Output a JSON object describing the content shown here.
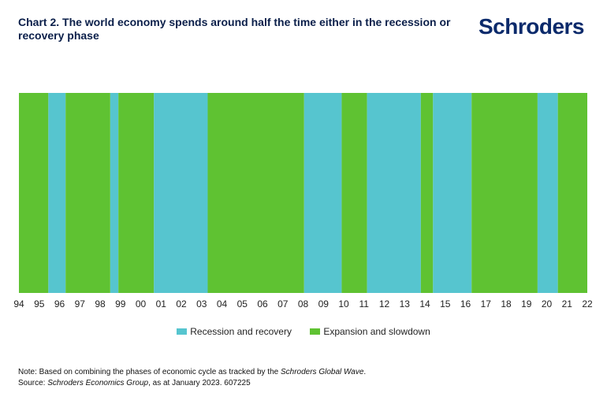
{
  "header": {
    "title": "Chart 2. The world economy spends around half the time either in the recession or recovery phase",
    "logo_text": "Schroders"
  },
  "colors": {
    "recession_recovery": "#56c5cf",
    "expansion_slowdown": "#5fc232",
    "axis_text": "#222222",
    "title": "#0b1f4a"
  },
  "chart_data": {
    "type": "area",
    "title": "Chart 2. The world economy spends around half the time either in the recession or recovery phase",
    "xlabel": "",
    "ylabel": "",
    "x_tick_labels": [
      "94",
      "95",
      "96",
      "97",
      "98",
      "99",
      "00",
      "01",
      "02",
      "03",
      "04",
      "05",
      "06",
      "07",
      "08",
      "09",
      "10",
      "11",
      "12",
      "13",
      "14",
      "15",
      "16",
      "17",
      "18",
      "19",
      "20",
      "21",
      "22"
    ],
    "x_range": [
      1994.0,
      2022.0
    ],
    "series": [
      {
        "name": "Recession and recovery",
        "color": "#56c5cf"
      },
      {
        "name": "Expansion and slowdown",
        "color": "#5fc232"
      }
    ],
    "phases": [
      {
        "start": 1994.0,
        "end": 1995.45,
        "series": "Expansion and slowdown"
      },
      {
        "start": 1995.45,
        "end": 1996.3,
        "series": "Recession and recovery"
      },
      {
        "start": 1996.3,
        "end": 1998.5,
        "series": "Expansion and slowdown"
      },
      {
        "start": 1998.5,
        "end": 1998.9,
        "series": "Recession and recovery"
      },
      {
        "start": 1998.9,
        "end": 2000.65,
        "series": "Expansion and slowdown"
      },
      {
        "start": 2000.65,
        "end": 2003.3,
        "series": "Recession and recovery"
      },
      {
        "start": 2003.3,
        "end": 2008.05,
        "series": "Expansion and slowdown"
      },
      {
        "start": 2008.05,
        "end": 2009.9,
        "series": "Recession and recovery"
      },
      {
        "start": 2009.9,
        "end": 2011.15,
        "series": "Expansion and slowdown"
      },
      {
        "start": 2011.15,
        "end": 2013.8,
        "series": "Recession and recovery"
      },
      {
        "start": 2013.8,
        "end": 2014.4,
        "series": "Expansion and slowdown"
      },
      {
        "start": 2014.4,
        "end": 2016.3,
        "series": "Recession and recovery"
      },
      {
        "start": 2016.3,
        "end": 2019.55,
        "series": "Expansion and slowdown"
      },
      {
        "start": 2019.55,
        "end": 2019.65,
        "series": "Recession and recovery"
      },
      {
        "start": 2019.65,
        "end": 2020.55,
        "series": "Recession and recovery"
      },
      {
        "start": 2020.55,
        "end": 2022.0,
        "series": "Expansion and slowdown"
      }
    ],
    "legend_position": "bottom",
    "grid": false
  },
  "legend": {
    "recession_label": "Recession and recovery",
    "expansion_label": "Expansion and slowdown"
  },
  "notes": {
    "note_prefix": "Note: Based on combining the phases of economic cycle as tracked by the ",
    "note_italic": "Schroders Global Wave",
    "note_suffix": ".",
    "source_prefix": "Source: ",
    "source_italic": "Schroders Economics Group",
    "source_suffix": ", as at January 2023. 607225"
  }
}
